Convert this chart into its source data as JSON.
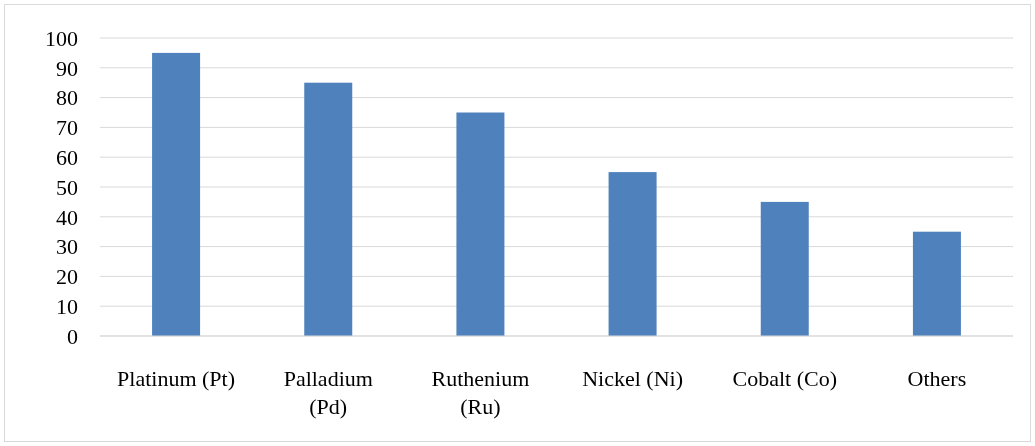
{
  "chart_data": {
    "type": "bar",
    "categories": [
      "Platinum (Pt)",
      "Palladium (Pd)",
      "Ruthenium (Ru)",
      "Nickel (Ni)",
      "Cobalt (Co)",
      "Others"
    ],
    "values": [
      95,
      85,
      75,
      55,
      45,
      35
    ],
    "color": "#4f81bd",
    "ylim": [
      0,
      100
    ],
    "yticks": [
      0,
      10,
      20,
      30,
      40,
      50,
      60,
      70,
      80,
      90,
      100
    ],
    "grid": "y"
  }
}
